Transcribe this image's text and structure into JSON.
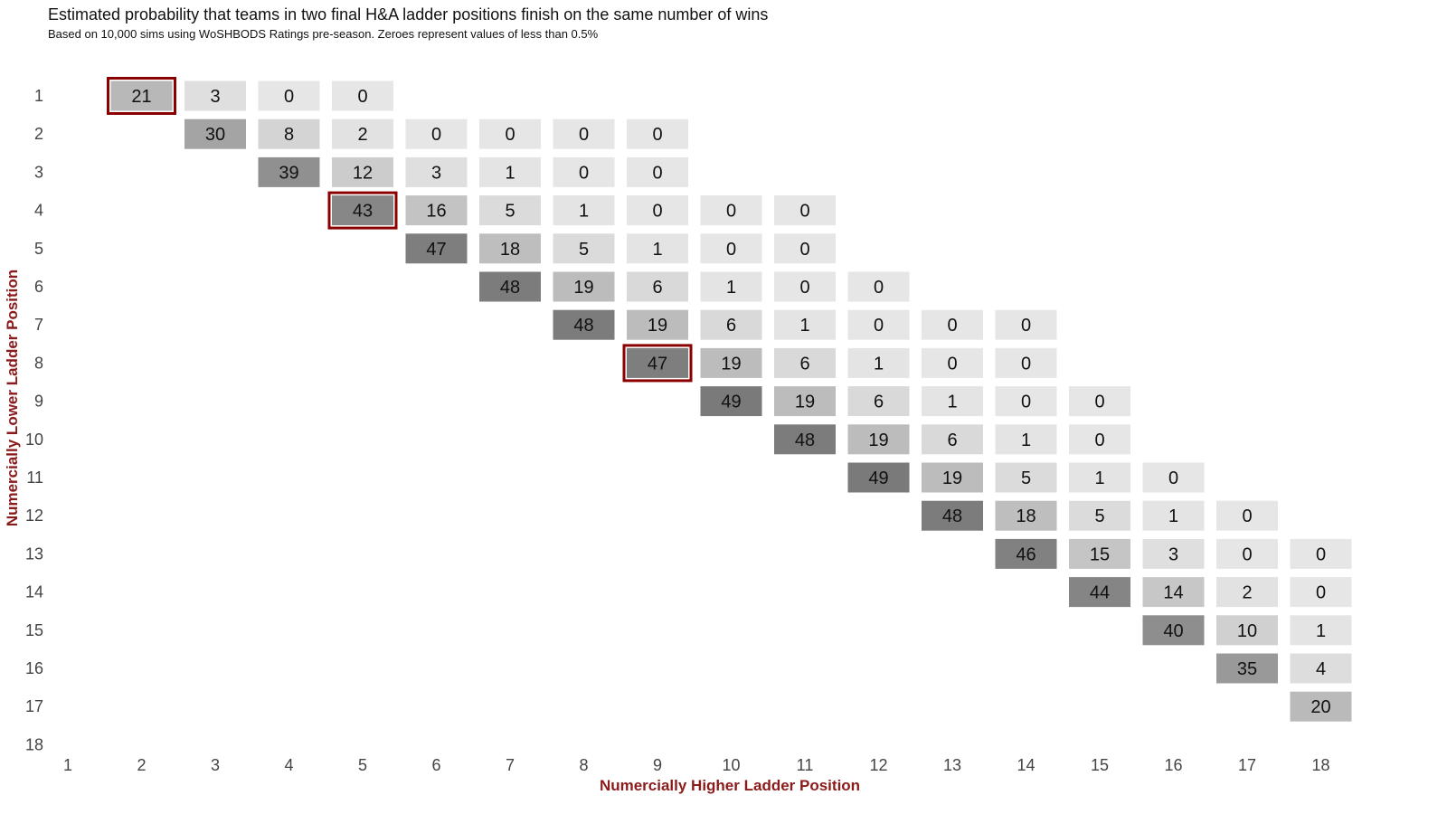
{
  "chart_data": {
    "type": "heatmap",
    "title": "Estimated probability that teams in two final H&A ladder positions finish on the same number of wins",
    "subtitle": "Based on 10,000 sims using WoSHBODS Ratings pre-season. Zeroes represent values of less than 0.5%",
    "xlabel": "Numercially Higher Ladder Position",
    "ylabel": "Numercially Lower Ladder Position",
    "x_ticks": [
      "1",
      "2",
      "3",
      "4",
      "5",
      "6",
      "7",
      "8",
      "9",
      "10",
      "11",
      "12",
      "13",
      "14",
      "15",
      "16",
      "17",
      "18"
    ],
    "y_ticks": [
      "1",
      "2",
      "3",
      "4",
      "5",
      "6",
      "7",
      "8",
      "9",
      "10",
      "11",
      "12",
      "13",
      "14",
      "15",
      "16",
      "17",
      "18"
    ],
    "cells": [
      {
        "row": 1,
        "col": 2,
        "value": 21,
        "highlight": true
      },
      {
        "row": 1,
        "col": 3,
        "value": 3
      },
      {
        "row": 1,
        "col": 4,
        "value": 0
      },
      {
        "row": 1,
        "col": 5,
        "value": 0
      },
      {
        "row": 2,
        "col": 3,
        "value": 30
      },
      {
        "row": 2,
        "col": 4,
        "value": 8
      },
      {
        "row": 2,
        "col": 5,
        "value": 2
      },
      {
        "row": 2,
        "col": 6,
        "value": 0
      },
      {
        "row": 2,
        "col": 7,
        "value": 0
      },
      {
        "row": 2,
        "col": 8,
        "value": 0
      },
      {
        "row": 2,
        "col": 9,
        "value": 0
      },
      {
        "row": 3,
        "col": 4,
        "value": 39
      },
      {
        "row": 3,
        "col": 5,
        "value": 12
      },
      {
        "row": 3,
        "col": 6,
        "value": 3
      },
      {
        "row": 3,
        "col": 7,
        "value": 1
      },
      {
        "row": 3,
        "col": 8,
        "value": 0
      },
      {
        "row": 3,
        "col": 9,
        "value": 0
      },
      {
        "row": 4,
        "col": 5,
        "value": 43,
        "highlight": true
      },
      {
        "row": 4,
        "col": 6,
        "value": 16
      },
      {
        "row": 4,
        "col": 7,
        "value": 5
      },
      {
        "row": 4,
        "col": 8,
        "value": 1
      },
      {
        "row": 4,
        "col": 9,
        "value": 0
      },
      {
        "row": 4,
        "col": 10,
        "value": 0
      },
      {
        "row": 4,
        "col": 11,
        "value": 0
      },
      {
        "row": 5,
        "col": 6,
        "value": 47
      },
      {
        "row": 5,
        "col": 7,
        "value": 18
      },
      {
        "row": 5,
        "col": 8,
        "value": 5
      },
      {
        "row": 5,
        "col": 9,
        "value": 1
      },
      {
        "row": 5,
        "col": 10,
        "value": 0
      },
      {
        "row": 5,
        "col": 11,
        "value": 0
      },
      {
        "row": 6,
        "col": 7,
        "value": 48
      },
      {
        "row": 6,
        "col": 8,
        "value": 19
      },
      {
        "row": 6,
        "col": 9,
        "value": 6
      },
      {
        "row": 6,
        "col": 10,
        "value": 1
      },
      {
        "row": 6,
        "col": 11,
        "value": 0
      },
      {
        "row": 6,
        "col": 12,
        "value": 0
      },
      {
        "row": 7,
        "col": 8,
        "value": 48
      },
      {
        "row": 7,
        "col": 9,
        "value": 19
      },
      {
        "row": 7,
        "col": 10,
        "value": 6
      },
      {
        "row": 7,
        "col": 11,
        "value": 1
      },
      {
        "row": 7,
        "col": 12,
        "value": 0
      },
      {
        "row": 7,
        "col": 13,
        "value": 0
      },
      {
        "row": 7,
        "col": 14,
        "value": 0
      },
      {
        "row": 8,
        "col": 9,
        "value": 47,
        "highlight": true
      },
      {
        "row": 8,
        "col": 10,
        "value": 19
      },
      {
        "row": 8,
        "col": 11,
        "value": 6
      },
      {
        "row": 8,
        "col": 12,
        "value": 1
      },
      {
        "row": 8,
        "col": 13,
        "value": 0
      },
      {
        "row": 8,
        "col": 14,
        "value": 0
      },
      {
        "row": 9,
        "col": 10,
        "value": 49
      },
      {
        "row": 9,
        "col": 11,
        "value": 19
      },
      {
        "row": 9,
        "col": 12,
        "value": 6
      },
      {
        "row": 9,
        "col": 13,
        "value": 1
      },
      {
        "row": 9,
        "col": 14,
        "value": 0
      },
      {
        "row": 9,
        "col": 15,
        "value": 0
      },
      {
        "row": 10,
        "col": 11,
        "value": 48
      },
      {
        "row": 10,
        "col": 12,
        "value": 19
      },
      {
        "row": 10,
        "col": 13,
        "value": 6
      },
      {
        "row": 10,
        "col": 14,
        "value": 1
      },
      {
        "row": 10,
        "col": 15,
        "value": 0
      },
      {
        "row": 11,
        "col": 12,
        "value": 49
      },
      {
        "row": 11,
        "col": 13,
        "value": 19
      },
      {
        "row": 11,
        "col": 14,
        "value": 5
      },
      {
        "row": 11,
        "col": 15,
        "value": 1
      },
      {
        "row": 11,
        "col": 16,
        "value": 0
      },
      {
        "row": 12,
        "col": 13,
        "value": 48
      },
      {
        "row": 12,
        "col": 14,
        "value": 18
      },
      {
        "row": 12,
        "col": 15,
        "value": 5
      },
      {
        "row": 12,
        "col": 16,
        "value": 1
      },
      {
        "row": 12,
        "col": 17,
        "value": 0
      },
      {
        "row": 13,
        "col": 14,
        "value": 46
      },
      {
        "row": 13,
        "col": 15,
        "value": 15
      },
      {
        "row": 13,
        "col": 16,
        "value": 3
      },
      {
        "row": 13,
        "col": 17,
        "value": 0
      },
      {
        "row": 13,
        "col": 18,
        "value": 0
      },
      {
        "row": 14,
        "col": 15,
        "value": 44
      },
      {
        "row": 14,
        "col": 16,
        "value": 14
      },
      {
        "row": 14,
        "col": 17,
        "value": 2
      },
      {
        "row": 14,
        "col": 18,
        "value": 0
      },
      {
        "row": 15,
        "col": 16,
        "value": 40
      },
      {
        "row": 15,
        "col": 17,
        "value": 10
      },
      {
        "row": 15,
        "col": 18,
        "value": 1
      },
      {
        "row": 16,
        "col": 17,
        "value": 35
      },
      {
        "row": 16,
        "col": 18,
        "value": 4
      },
      {
        "row": 17,
        "col": 18,
        "value": 20
      }
    ],
    "color_scale": {
      "low": "#e6e6e6",
      "high": "#7a7a7a",
      "min": 0,
      "max": 49
    },
    "highlight_color": "#8b0000",
    "axis_label_color": "#8b1a1a",
    "tick_color": "#444444",
    "grid": false,
    "legend": "none"
  }
}
